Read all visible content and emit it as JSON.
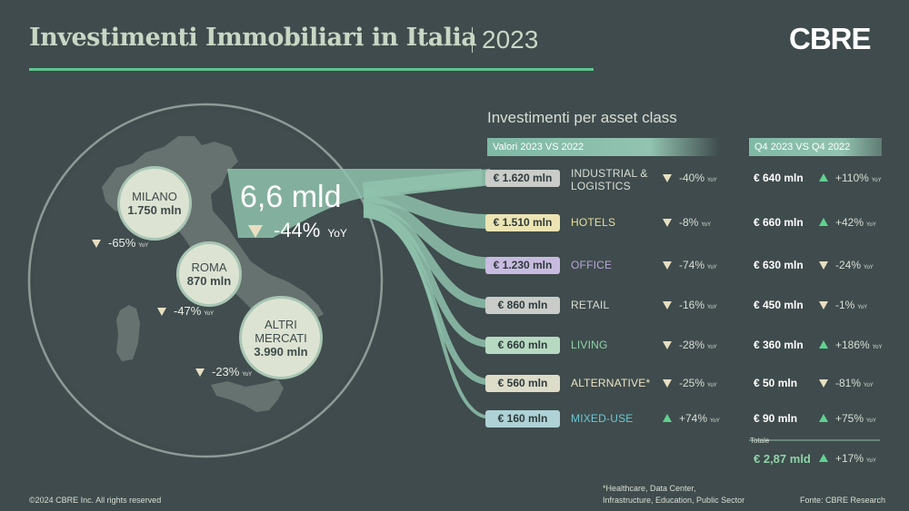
{
  "title": {
    "main": "Investimenti Immobiliari in Italia",
    "year": "2023"
  },
  "logo": "CBRE",
  "section_title": "Investimenti per asset class",
  "headers": {
    "values": "Valori 2023 VS 2022",
    "q4": "Q4 2023 VS Q4 2022"
  },
  "yoy_label": "YoY",
  "big": {
    "value": "6,6 mld",
    "yoy": "-44%",
    "yoy_label": "YoY"
  },
  "cities": [
    {
      "name": "MILANO",
      "value": "1.750 mln",
      "yoy": "-65%"
    },
    {
      "name": "ROMA",
      "value": "870 mln",
      "yoy": "-47%"
    },
    {
      "name": "ALTRI MERCATI",
      "value": "3.990 mln",
      "yoy": "-23%"
    }
  ],
  "rows": [
    {
      "value": "€ 1.620 mln",
      "cls": "INDUSTRIAL & LOGISTICS",
      "yoy": "-40%",
      "yoy_dir": "down",
      "q4": "€ 640 mln",
      "q4_yoy": "+110%",
      "q4_dir": "up",
      "cls_color": "#d9dfd6",
      "pill": "#c9ccc8"
    },
    {
      "value": "€ 1.510 mln",
      "cls": "HOTELS",
      "yoy": "-8%",
      "yoy_dir": "down",
      "q4": "€ 660 mln",
      "q4_yoy": "+42%",
      "q4_dir": "up",
      "cls_color": "#e8df9a",
      "pill": "#ece5b3"
    },
    {
      "value": "€ 1.230 mln",
      "cls": "OFFICE",
      "yoy": "-74%",
      "yoy_dir": "down",
      "q4": "€ 630 mln",
      "q4_yoy": "-24%",
      "q4_dir": "down",
      "cls_color": "#b9a6dc",
      "pill": "#c7bce0"
    },
    {
      "value": "€ 860 mln",
      "cls": "RETAIL",
      "yoy": "-16%",
      "yoy_dir": "down",
      "q4": "€ 450 mln",
      "q4_yoy": "-1%",
      "q4_dir": "down",
      "cls_color": "#d9dfd6",
      "pill": "#c9ccc8"
    },
    {
      "value": "€ 660 mln",
      "cls": "LIVING",
      "yoy": "-28%",
      "yoy_dir": "down",
      "q4": "€ 360 mln",
      "q4_yoy": "+186%",
      "q4_dir": "up",
      "cls_color": "#8fd4a9",
      "pill": "#b7d9c2"
    },
    {
      "value": "€ 560 mln",
      "cls": "ALTERNATIVE*",
      "yoy": "-25%",
      "yoy_dir": "down",
      "q4": "€ 50 mln",
      "q4_yoy": "-81%",
      "q4_dir": "down",
      "cls_color": "#ece5c4",
      "pill": "#dcdcc9"
    },
    {
      "value": "€ 160 mln",
      "cls": "MIXED-USE",
      "yoy": "+74%",
      "yoy_dir": "up",
      "q4": "€ 90 mln",
      "q4_yoy": "+75%",
      "q4_dir": "up",
      "cls_color": "#6cc7d6",
      "pill": "#aed2d6"
    }
  ],
  "total": {
    "label": "Totale",
    "value": "€ 2,87 mld",
    "yoy": "+17%"
  },
  "footnote": {
    "line1": "*Healthcare, Data Center,",
    "line2": "Infrastructure, Education, Public Sector"
  },
  "copyright": "©2024 CBRE Inc. All rights reserved",
  "source": "Fonte: CBRE Research",
  "colors": {
    "background": "#3f4b4c",
    "accent_green": "#5fc28f",
    "flow": "#8fc2ad",
    "up": "#5fd28f",
    "down": "#e8dfc2"
  }
}
